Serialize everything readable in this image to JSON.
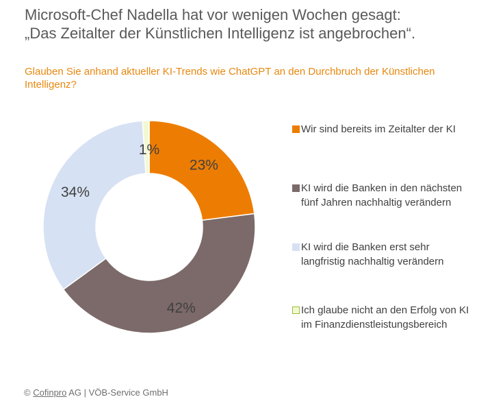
{
  "title_line1": "Microsoft-Chef Nadella hat vor wenigen Wochen gesagt:",
  "title_line2": "„Das Zeitalter der Künstlichen Intelligenz ist angebrochen“.",
  "subtitle": "Glauben Sie anhand aktueller KI-Trends wie ChatGPT an den Durchbruch der Künstlichen Intelligenz?",
  "footer": {
    "copyright_symbol": "©",
    "company_underlined": "Cofinpro",
    "rest": " AG | VÖB-Service GmbH"
  },
  "chart_data": {
    "type": "pie",
    "donut": true,
    "categories": [
      "Wir sind bereits im Zeitalter der KI",
      "KI wird die Banken in den nächsten fünf Jahren nachhaltig verändern",
      "KI wird die Banken erst sehr langfristig nachhaltig verändern",
      "Ich glaube nicht an den Erfolg von KI im Finanzdienstleistungsbereich"
    ],
    "values": [
      23,
      42,
      34,
      1
    ],
    "data_labels": [
      "23%",
      "42%",
      "34%",
      "1%"
    ],
    "colors": [
      "#ed7d02",
      "#7b6a69",
      "#d6e1f3",
      "#f2f9d2"
    ],
    "legend_position": "right"
  }
}
